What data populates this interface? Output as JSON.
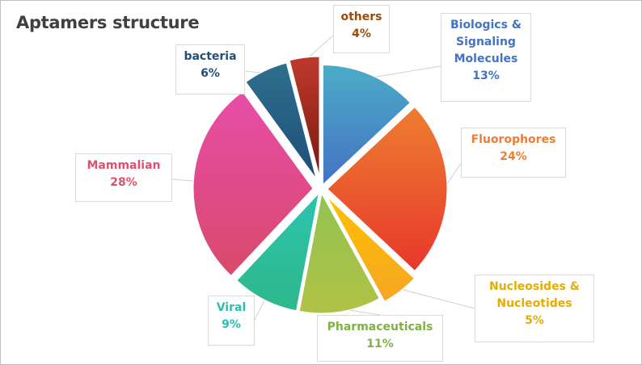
{
  "chart_data": {
    "type": "pie",
    "title": "Aptamers structure",
    "slices": [
      {
        "label": "Biologics & Signaling Molecules",
        "value": 13,
        "pct": "13%",
        "color": "#4bacc6",
        "color2": "#4472c4",
        "label_color": "#4472c4"
      },
      {
        "label": "Fluorophores",
        "value": 24,
        "pct": "24%",
        "color": "#ed7d31",
        "color2": "#e8382b",
        "label_color": "#ed7d31"
      },
      {
        "label": "Nucleosides & Nucleotides",
        "value": 5,
        "pct": "5%",
        "color": "#ffc000",
        "color2": "#f5a623",
        "label_color": "#e6ac00"
      },
      {
        "label": "Pharmaceuticals",
        "value": 11,
        "pct": "11%",
        "color": "#92c353",
        "color2": "#b0c244",
        "label_color": "#7cb342"
      },
      {
        "label": "Viral",
        "value": 9,
        "pct": "9%",
        "color": "#2bc4b0",
        "color2": "#2eb88a",
        "label_color": "#2bbfae"
      },
      {
        "label": "Mammalian",
        "value": 28,
        "pct": "28%",
        "color": "#e84ca8",
        "color2": "#d94a6a",
        "label_color": "#e0506b"
      },
      {
        "label": "bacteria",
        "value": 6,
        "pct": "6%",
        "color": "#2e6f8e",
        "color2": "#1f4e79",
        "label_color": "#1f4e79"
      },
      {
        "label": "others",
        "value": 4,
        "pct": "4%",
        "color": "#c0392b",
        "color2": "#7b1a12",
        "label_color": "#9c4a0a"
      }
    ]
  },
  "labels": [
    {
      "lines": [
        "Biologics &",
        "Signaling",
        "Molecules"
      ],
      "pct": "13%"
    },
    {
      "lines": [
        "Fluorophores"
      ],
      "pct": "24%"
    },
    {
      "lines": [
        "Nucleosides &",
        "Nucleotides"
      ],
      "pct": "5%"
    },
    {
      "lines": [
        "Pharmaceuticals"
      ],
      "pct": "11%"
    },
    {
      "lines": [
        "Viral"
      ],
      "pct": "9%"
    },
    {
      "lines": [
        "Mammalian"
      ],
      "pct": "28%"
    },
    {
      "lines": [
        "bacteria"
      ],
      "pct": "6%"
    },
    {
      "lines": [
        "others"
      ],
      "pct": "4%"
    }
  ]
}
